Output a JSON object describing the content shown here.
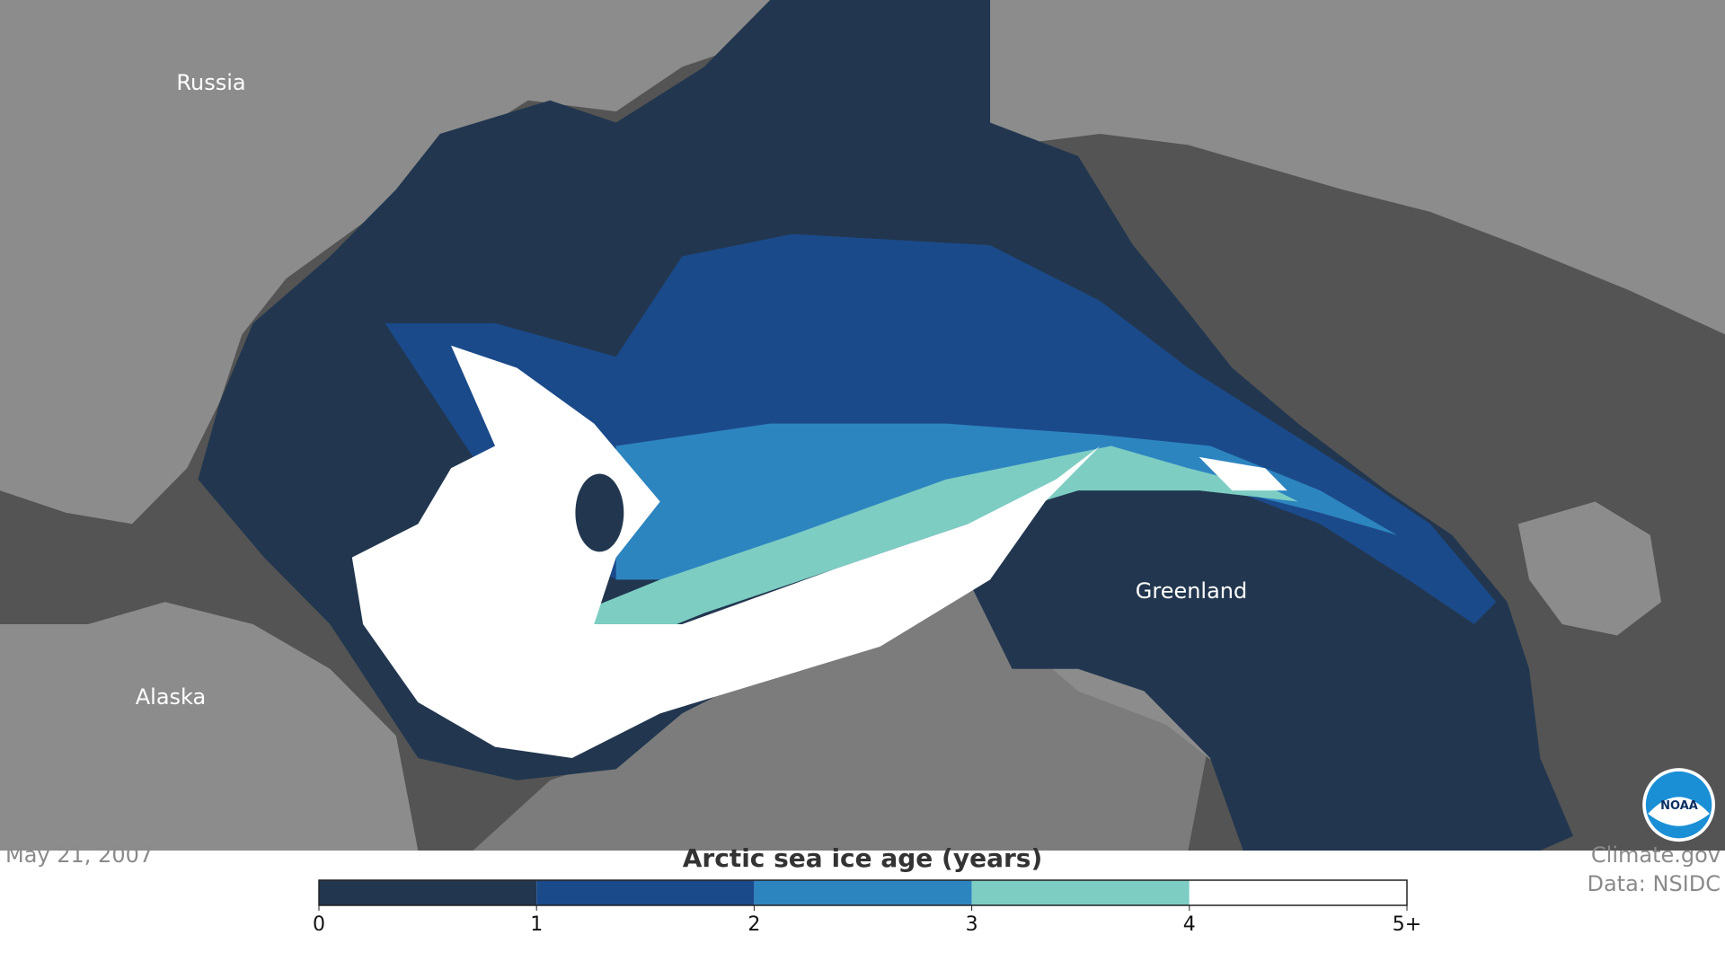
{
  "map": {
    "places": [
      {
        "name": "Russia"
      },
      {
        "name": "Alaska"
      },
      {
        "name": "Greenland"
      }
    ],
    "date": "May 21, 2007",
    "credits": [
      "Climate.gov",
      "Data: NSIDC"
    ],
    "logo": "NOAA",
    "legend": {
      "title": "Arctic sea ice age (years)",
      "colors": [
        "#22374f",
        "#1b4a8a",
        "#2d85c0",
        "#7dcdc3",
        "#ffffff"
      ],
      "ticks": [
        0,
        1,
        2,
        3,
        4,
        {
          "value": 5,
          "label": "5+"
        }
      ],
      "range": [
        0,
        5
      ]
    }
  }
}
